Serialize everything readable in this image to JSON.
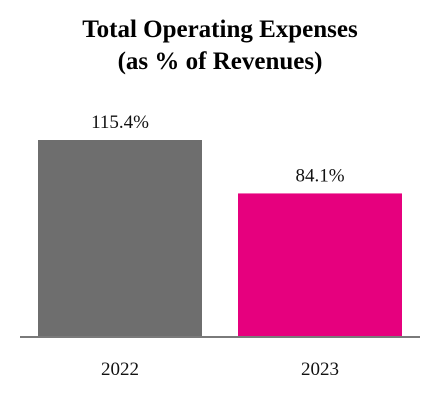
{
  "chart_data": {
    "type": "bar",
    "title": "Total Operating Expenses",
    "subtitle": "(as % of Revenues)",
    "categories": [
      "2022",
      "2023"
    ],
    "values": [
      115.4,
      84.1
    ],
    "data_labels": [
      "115.4%",
      "84.1%"
    ],
    "colors": [
      "#6e6e6e",
      "#e6007e"
    ],
    "axis_color": "#7a7a7a",
    "ylim": [
      0,
      115.4
    ],
    "grid": false,
    "legend": "none"
  }
}
